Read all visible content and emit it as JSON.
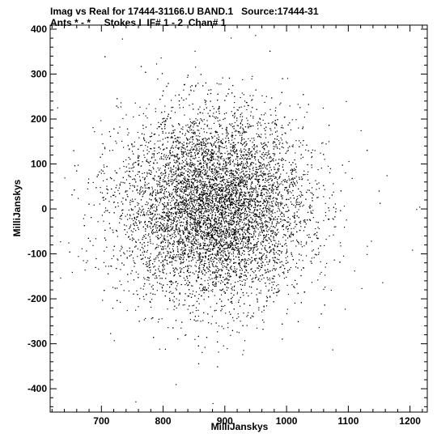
{
  "header": {
    "line1": "Imag vs Real for 17444-31166.U BAND.1   Source:17444-31",
    "line2": "Ants * - *     Stokes I  IF# 1 - 2  Chan# 1"
  },
  "chart_data": {
    "type": "scatter",
    "title": "Imag vs Real for 17444-31166.U BAND.1   Source:17444-31",
    "subtitle": "Ants * - *     Stokes I  IF# 1 - 2  Chan# 1",
    "xlabel": "MilliJanskys",
    "ylabel": "MilliJanskys",
    "xlim": [
      617,
      1228
    ],
    "ylim": [
      -452,
      409
    ],
    "xticks": [
      700,
      800,
      900,
      1000,
      1100,
      1200
    ],
    "yticks": [
      -400,
      -300,
      -200,
      -100,
      0,
      100,
      200,
      300,
      400
    ],
    "xtick_labels": [
      "700",
      "800",
      "900",
      "1000",
      "1100",
      "1200"
    ],
    "ytick_labels": [
      "-400",
      "-300",
      "-200",
      "-100",
      "0",
      "100",
      "200",
      "300",
      "400"
    ],
    "distribution": {
      "center_x": 882,
      "center_y": 5,
      "spread_x": 75,
      "spread_y": 105,
      "count": 9000
    },
    "outliers": [
      {
        "x": 1162,
        "y": 75
      },
      {
        "x": 1215,
        "y": 5
      },
      {
        "x": 1155,
        "y": -163
      },
      {
        "x": 1096,
        "y": 240
      },
      {
        "x": 949,
        "y": 387
      },
      {
        "x": 796,
        "y": 337
      },
      {
        "x": 880,
        "y": -432
      },
      {
        "x": 755,
        "y": -428
      },
      {
        "x": 633,
        "y": -72
      },
      {
        "x": 652,
        "y": -140
      },
      {
        "x": 640,
        "y": 70
      },
      {
        "x": 1130,
        "y": -82
      },
      {
        "x": 1120,
        "y": 175
      },
      {
        "x": 1210,
        "y": 0
      },
      {
        "x": 705,
        "y": 135
      },
      {
        "x": 720,
        "y": -292
      }
    ],
    "grid": false,
    "marker_color": "#000000"
  }
}
